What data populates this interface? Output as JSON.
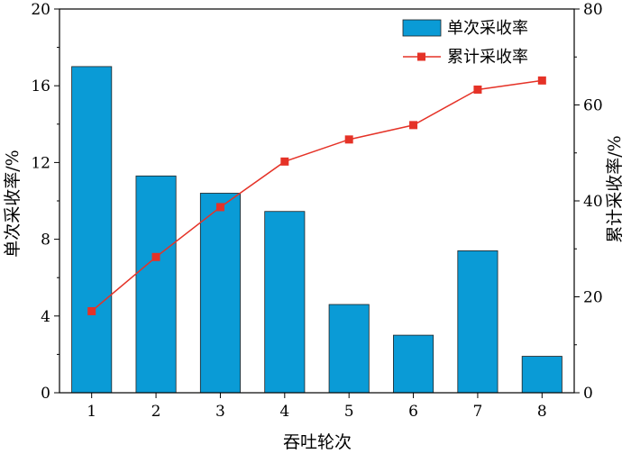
{
  "chart_data": {
    "type": "bar+line",
    "categories": [
      "1",
      "2",
      "3",
      "4",
      "5",
      "6",
      "7",
      "8"
    ],
    "xlabel": "吞吐轮次",
    "ylabel": "单次采收率/%",
    "y2label": "累计采收率/%",
    "ylim": [
      0,
      20
    ],
    "y2lim": [
      0,
      80
    ],
    "yticks": [
      "0",
      "4",
      "8",
      "12",
      "16",
      "20"
    ],
    "y2ticks": [
      "0",
      "20",
      "40",
      "60",
      "80"
    ],
    "legend_position": "top-right",
    "grid": false,
    "series": [
      {
        "name": "单次采收率",
        "type": "bar",
        "axis": "left",
        "color": "#0a9bd6",
        "values": [
          17.0,
          11.3,
          10.4,
          9.45,
          4.6,
          3.0,
          7.4,
          1.9
        ]
      },
      {
        "name": "累计采收率",
        "type": "line",
        "axis": "right",
        "color": "#e53227",
        "marker": "square",
        "values": [
          17.0,
          28.3,
          38.7,
          48.2,
          52.8,
          55.8,
          63.2,
          65.1
        ]
      }
    ]
  }
}
